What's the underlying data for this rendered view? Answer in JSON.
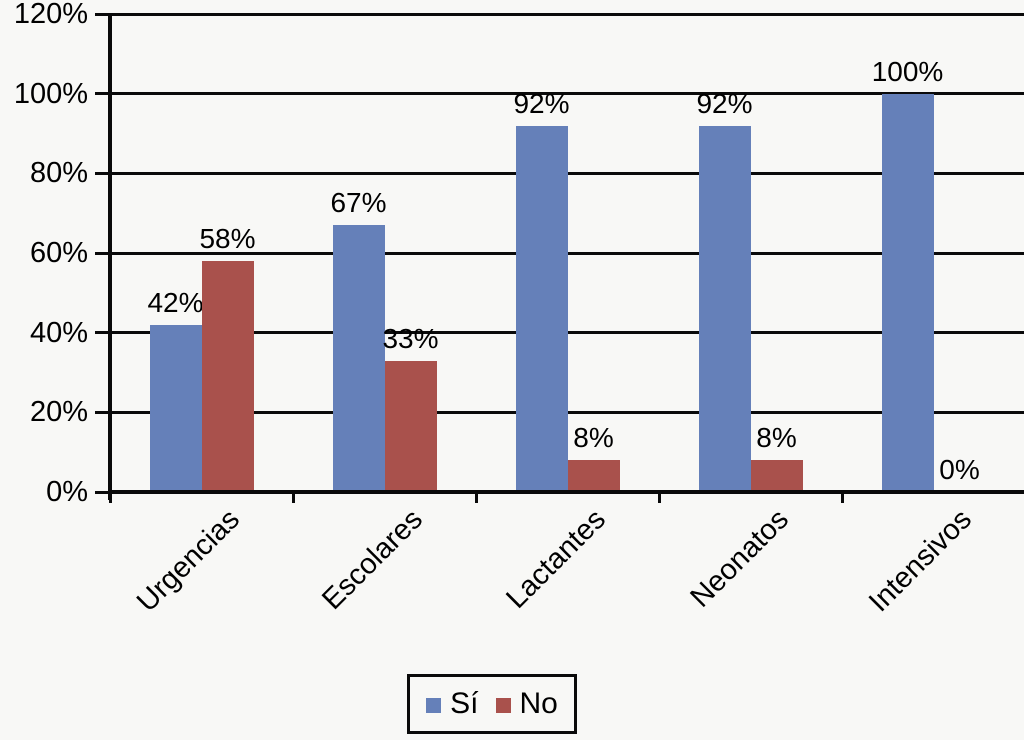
{
  "chart_data": {
    "type": "bar",
    "title": "",
    "xlabel": "",
    "ylabel": "",
    "categories": [
      "Urgencias",
      "Escolares",
      "Lactantes",
      "Neonatos",
      "Intensivos"
    ],
    "series": [
      {
        "name": "Sí",
        "color": "#6580B9",
        "values": [
          42,
          67,
          92,
          92,
          100
        ],
        "labels": [
          "42%",
          "67%",
          "92%",
          "92%",
          "100%"
        ]
      },
      {
        "name": "No",
        "color": "#A9514C",
        "values": [
          58,
          33,
          8,
          8,
          0
        ],
        "labels": [
          "58%",
          "33%",
          "8%",
          "8%",
          "0%"
        ]
      }
    ],
    "ylim": [
      0,
      120
    ],
    "ytick_labels": [
      "0%",
      "20%",
      "40%",
      "60%",
      "80%",
      "100%",
      "120%"
    ],
    "ytick_values": [
      0,
      20,
      40,
      60,
      80,
      100,
      120
    ],
    "grid": "horizontal",
    "legend_position": "bottom",
    "data_label_format": "percent"
  }
}
